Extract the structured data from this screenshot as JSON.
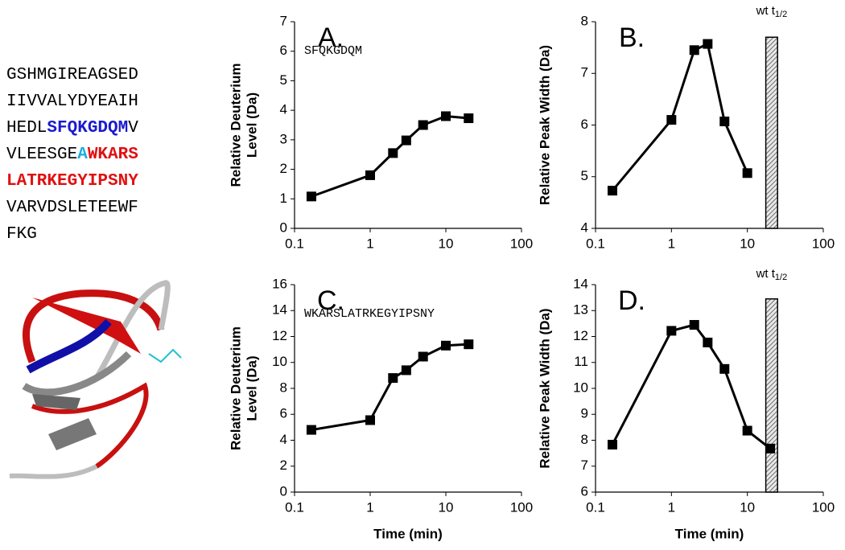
{
  "sequence": [
    [
      {
        "text": "GSHMGIREAGSED",
        "color": "#000000",
        "bold": false
      }
    ],
    [
      {
        "text": "IIVVALYDYEAIH",
        "color": "#000000",
        "bold": false
      }
    ],
    [
      {
        "text": "HEDL",
        "color": "#000000",
        "bold": false
      },
      {
        "text": "SFQKGDQM",
        "color": "#1a1ad0",
        "bold": true
      },
      {
        "text": "V",
        "color": "#000000",
        "bold": false
      }
    ],
    [
      {
        "text": "VLEESGE",
        "color": "#000000",
        "bold": false
      },
      {
        "text": "A",
        "color": "#1eaee0",
        "bold": true
      },
      {
        "text": "WKARS",
        "color": "#e01010",
        "bold": true
      }
    ],
    [
      {
        "text": "LATRKEGYIPSNY",
        "color": "#e01010",
        "bold": true
      }
    ],
    [
      {
        "text": "VARVDSLETEEWF",
        "color": "#000000",
        "bold": false
      }
    ],
    [
      {
        "text": "FKG",
        "color": "#000000",
        "bold": false
      }
    ]
  ],
  "chart_data": [
    {
      "type": "line",
      "title": "A.",
      "peptide": "SFQKGDQM",
      "peptide_color": "#3a3ae0",
      "ylabel": [
        "Relative Deuterium",
        "Level (Da)"
      ],
      "xlabel": null,
      "x": [
        0.167,
        1,
        2,
        3,
        5,
        10,
        20
      ],
      "values": [
        1.08,
        1.8,
        2.55,
        2.98,
        3.5,
        3.8,
        3.73
      ],
      "color": "#000000",
      "xscale": "log",
      "xlim": [
        0.1,
        100
      ],
      "xticks": [
        0.1,
        1,
        10,
        100
      ],
      "ylim": [
        0,
        7
      ],
      "yticks": [
        0,
        1,
        2,
        3,
        4,
        5,
        6,
        7
      ]
    },
    {
      "type": "line",
      "title": "B.",
      "ylabel": [
        "Relative Peak Width (Da)"
      ],
      "xlabel": null,
      "x": [
        0.167,
        1,
        2,
        3,
        5,
        10
      ],
      "values": [
        4.73,
        6.1,
        7.45,
        7.57,
        6.07,
        5.07
      ],
      "color": "#000000",
      "bar": {
        "x": [
          17.5,
          25
        ],
        "value": 7.7,
        "annotation": "wt t",
        "annotation_sub": "1/2"
      },
      "xscale": "log",
      "xlim": [
        0.1,
        100
      ],
      "xticks": [
        0.1,
        1,
        10,
        100
      ],
      "ylim": [
        4,
        8
      ],
      "yticks": [
        4,
        5,
        6,
        7,
        8
      ]
    },
    {
      "type": "line",
      "title": "C.",
      "peptide": "WKARSLATRKEGYIPSNY",
      "peptide_color": "#e03030",
      "ylabel": [
        "Relative Deuterium",
        "Level (Da)"
      ],
      "xlabel": "Time (min)",
      "x": [
        0.167,
        1,
        2,
        3,
        5,
        10,
        20
      ],
      "values": [
        4.8,
        5.55,
        8.8,
        9.4,
        10.45,
        11.3,
        11.4
      ],
      "color": "#000000",
      "xscale": "log",
      "xlim": [
        0.1,
        100
      ],
      "xticks": [
        0.1,
        1,
        10,
        100
      ],
      "ylim": [
        0,
        16
      ],
      "yticks": [
        0,
        2,
        4,
        6,
        8,
        10,
        12,
        14,
        16
      ]
    },
    {
      "type": "line",
      "title": "D.",
      "ylabel": [
        "Relative Peak Width (Da)"
      ],
      "xlabel": "Time (min)",
      "x": [
        0.167,
        1,
        2,
        3,
        5,
        10,
        20
      ],
      "values": [
        7.83,
        12.22,
        12.45,
        11.77,
        10.75,
        8.37,
        7.68
      ],
      "color": "#000000",
      "bar": {
        "x": [
          17.5,
          25
        ],
        "value": 13.45,
        "annotation": "wt t",
        "annotation_sub": "1/2"
      },
      "xscale": "log",
      "xlim": [
        0.1,
        100
      ],
      "xticks": [
        0.1,
        1,
        10,
        100
      ],
      "ylim": [
        6,
        14
      ],
      "yticks": [
        6,
        7,
        8,
        9,
        10,
        11,
        12,
        13,
        14
      ]
    }
  ]
}
